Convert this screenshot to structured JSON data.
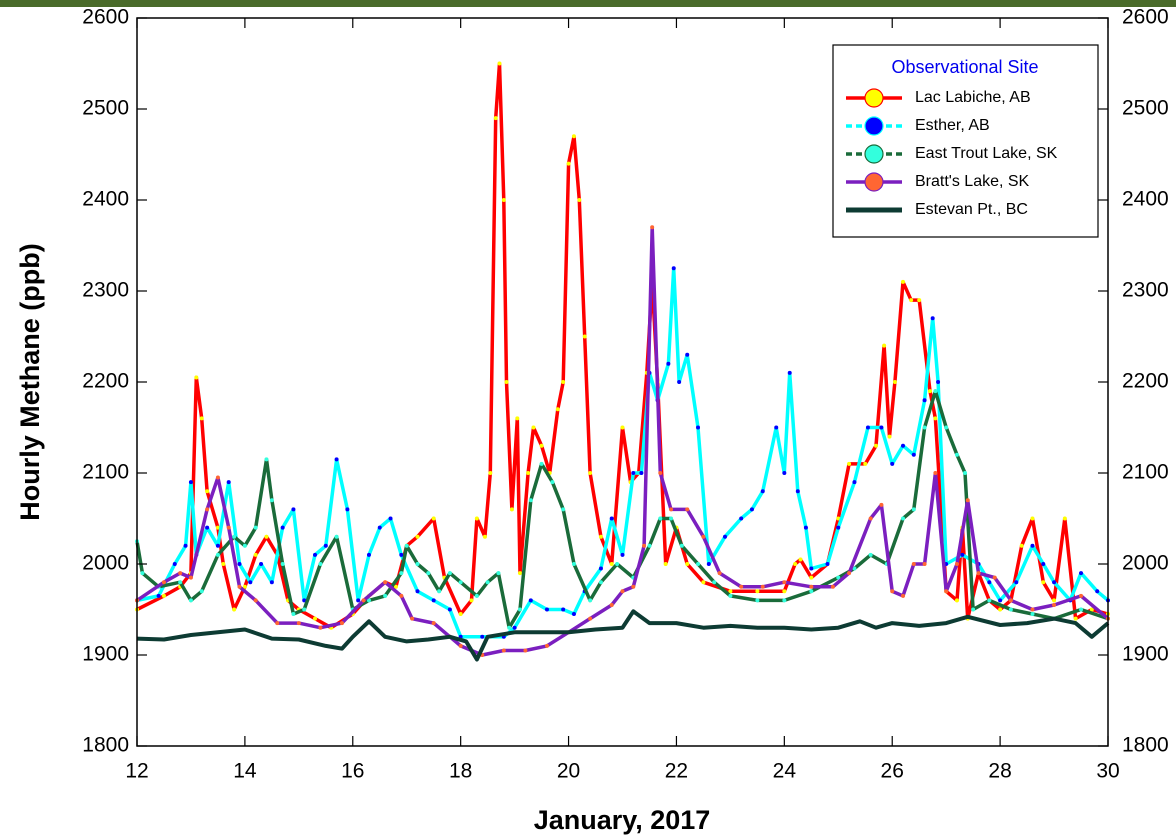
{
  "chart_data": {
    "type": "line",
    "xlabel": "January, 2017",
    "ylabel": "Hourly Methane (ppb)",
    "legend_title": "Observational Site",
    "legend": "upper right",
    "xlim": [
      12,
      30
    ],
    "xticks": [
      12,
      14,
      16,
      18,
      20,
      22,
      24,
      26,
      28,
      30
    ],
    "ylim": [
      1800,
      2600
    ],
    "yticks": [
      1800,
      1900,
      2000,
      2100,
      2200,
      2300,
      2400,
      2500,
      2600
    ],
    "y2lim": [
      1800,
      2600
    ],
    "y2ticks": [
      1800,
      1900,
      2000,
      2100,
      2200,
      2300,
      2400,
      2500,
      2600
    ],
    "series": [
      {
        "name": "Lac Labiche, AB",
        "color": "#ff0000",
        "marker_color": "#ffff00",
        "x": [
          12,
          12.5,
          12.8,
          13,
          13.1,
          13.2,
          13.3,
          13.5,
          13.6,
          13.8,
          14,
          14.2,
          14.4,
          14.6,
          14.8,
          15,
          15.3,
          15.6,
          16,
          16.3,
          16.6,
          16.8,
          17,
          17.2,
          17.5,
          17.7,
          18,
          18.2,
          18.3,
          18.45,
          18.55,
          18.65,
          18.72,
          18.8,
          18.85,
          18.95,
          19.05,
          19.1,
          19.25,
          19.35,
          19.5,
          19.65,
          19.8,
          19.9,
          20,
          20.1,
          20.2,
          20.3,
          20.4,
          20.6,
          20.8,
          21,
          21.15,
          21.3,
          21.45,
          21.55,
          21.65,
          21.8,
          22,
          22.2,
          22.5,
          23,
          23.5,
          24,
          24.2,
          24.3,
          24.5,
          24.8,
          25,
          25.2,
          25.5,
          25.7,
          25.85,
          25.95,
          26.05,
          26.2,
          26.35,
          26.5,
          26.7,
          26.8,
          27,
          27.2,
          27.3,
          27.4,
          27.6,
          27.8,
          28,
          28.2,
          28.4,
          28.6,
          28.8,
          29,
          29.2,
          29.4,
          29.7,
          30
        ],
        "values": [
          1950,
          1965,
          1975,
          1990,
          2205,
          2160,
          2080,
          2040,
          2000,
          1950,
          1975,
          2010,
          2030,
          2010,
          1960,
          1950,
          1940,
          1930,
          1945,
          1965,
          1980,
          1975,
          2020,
          2030,
          2050,
          1985,
          1945,
          1960,
          2050,
          2030,
          2100,
          2490,
          2550,
          2400,
          2200,
          2060,
          2160,
          1990,
          2100,
          2150,
          2130,
          2100,
          2170,
          2200,
          2440,
          2470,
          2400,
          2250,
          2100,
          2030,
          2000,
          2150,
          2090,
          2100,
          2210,
          2310,
          2200,
          2000,
          2040,
          2000,
          1980,
          1970,
          1970,
          1970,
          2000,
          2005,
          1985,
          2000,
          2050,
          2110,
          2110,
          2130,
          2240,
          2140,
          2200,
          2310,
          2290,
          2290,
          2190,
          2160,
          1970,
          1960,
          2040,
          1940,
          1990,
          1960,
          1950,
          1960,
          2020,
          2050,
          1980,
          1960,
          2050,
          1940,
          1950,
          1945
        ]
      },
      {
        "name": "Esther, AB",
        "color": "#00ffff",
        "marker_color": "#0000ff",
        "x": [
          12,
          12.4,
          12.7,
          12.9,
          13,
          13.1,
          13.3,
          13.5,
          13.7,
          13.9,
          14.1,
          14.3,
          14.5,
          14.7,
          14.9,
          15.1,
          15.3,
          15.5,
          15.7,
          15.9,
          16.1,
          16.3,
          16.5,
          16.7,
          16.9,
          17.2,
          17.5,
          17.8,
          18,
          18.4,
          18.8,
          19,
          19.3,
          19.6,
          19.9,
          20.1,
          20.3,
          20.6,
          20.8,
          21,
          21.2,
          21.35,
          21.5,
          21.65,
          21.85,
          21.95,
          22.05,
          22.2,
          22.4,
          22.6,
          22.9,
          23.2,
          23.4,
          23.6,
          23.85,
          24,
          24.1,
          24.25,
          24.4,
          24.5,
          24.8,
          25,
          25.3,
          25.55,
          25.8,
          26,
          26.2,
          26.4,
          26.6,
          26.75,
          26.85,
          27,
          27.3,
          27.6,
          27.8,
          28,
          28.3,
          28.6,
          28.8,
          29,
          29.3,
          29.5,
          29.8,
          30
        ],
        "values": [
          1960,
          1965,
          2000,
          2020,
          2090,
          2010,
          2040,
          2020,
          2090,
          2000,
          1980,
          2000,
          1980,
          2040,
          2060,
          1960,
          2010,
          2020,
          2115,
          2060,
          1960,
          2010,
          2040,
          2050,
          2010,
          1970,
          1960,
          1950,
          1920,
          1920,
          1920,
          1930,
          1960,
          1950,
          1950,
          1945,
          1970,
          1995,
          2050,
          2010,
          2100,
          2100,
          2210,
          2180,
          2220,
          2325,
          2200,
          2230,
          2150,
          2000,
          2030,
          2050,
          2060,
          2080,
          2150,
          2100,
          2210,
          2080,
          2040,
          1995,
          2000,
          2040,
          2090,
          2150,
          2150,
          2110,
          2130,
          2120,
          2180,
          2270,
          2200,
          2000,
          2010,
          2000,
          1980,
          1960,
          1980,
          2020,
          2000,
          1980,
          1960,
          1990,
          1970,
          1960
        ]
      },
      {
        "name": "East Trout Lake, SK",
        "color": "#1a6b3a",
        "marker_color": "#33ffdd",
        "x": [
          12,
          12.1,
          12.4,
          12.8,
          13,
          13.2,
          13.5,
          13.8,
          14,
          14.2,
          14.4,
          14.5,
          14.7,
          14.9,
          15.1,
          15.4,
          15.7,
          16,
          16.3,
          16.6,
          16.9,
          17,
          17.2,
          17.4,
          17.6,
          17.8,
          18,
          18.3,
          18.5,
          18.7,
          18.9,
          19.1,
          19.3,
          19.5,
          19.7,
          19.9,
          20.1,
          20.4,
          20.6,
          20.9,
          21.2,
          21.5,
          21.7,
          21.9,
          22.1,
          22.4,
          22.7,
          23,
          23.5,
          24,
          24.5,
          25,
          25.3,
          25.6,
          25.9,
          26.2,
          26.4,
          26.6,
          26.8,
          27,
          27.2,
          27.35,
          27.5,
          27.8,
          28.2,
          28.6,
          29,
          29.5,
          30
        ],
        "values": [
          2025,
          1990,
          1975,
          1980,
          1960,
          1970,
          2010,
          2030,
          2020,
          2040,
          2115,
          2070,
          2000,
          1945,
          1950,
          2000,
          2030,
          1950,
          1960,
          1965,
          1990,
          2020,
          2000,
          1990,
          1970,
          1990,
          1980,
          1965,
          1980,
          1990,
          1930,
          1950,
          2070,
          2110,
          2090,
          2060,
          2000,
          1960,
          1980,
          2000,
          1985,
          2020,
          2050,
          2050,
          2020,
          2000,
          1980,
          1965,
          1960,
          1960,
          1970,
          1985,
          1995,
          2010,
          2000,
          2050,
          2060,
          2150,
          2190,
          2150,
          2120,
          2100,
          1950,
          1960,
          1950,
          1945,
          1940,
          1950,
          1940
        ]
      },
      {
        "name": "Bratt's Lake, SK",
        "color": "#7b1fbf",
        "marker_color": "#ff6633",
        "x": [
          12,
          12.5,
          12.8,
          13,
          13.3,
          13.5,
          13.7,
          13.9,
          14.2,
          14.6,
          15,
          15.4,
          15.8,
          16.2,
          16.6,
          16.9,
          17.1,
          17.5,
          17.8,
          18,
          18.4,
          18.8,
          19.2,
          19.6,
          20,
          20.4,
          20.8,
          21,
          21.2,
          21.4,
          21.55,
          21.7,
          21.9,
          22.2,
          22.5,
          22.8,
          23.2,
          23.6,
          24,
          24.5,
          24.9,
          25.2,
          25.6,
          25.8,
          26,
          26.2,
          26.4,
          26.6,
          26.8,
          27,
          27.2,
          27.4,
          27.6,
          27.9,
          28.2,
          28.6,
          29,
          29.5,
          30
        ],
        "values": [
          1960,
          1980,
          1990,
          1985,
          2060,
          2095,
          2040,
          1975,
          1960,
          1935,
          1935,
          1930,
          1935,
          1960,
          1980,
          1965,
          1940,
          1935,
          1920,
          1910,
          1900,
          1905,
          1905,
          1910,
          1925,
          1940,
          1955,
          1970,
          1975,
          2020,
          2370,
          2100,
          2060,
          2060,
          2030,
          1990,
          1975,
          1975,
          1980,
          1975,
          1975,
          1990,
          2050,
          2065,
          1970,
          1965,
          2000,
          2000,
          2100,
          1970,
          2000,
          2070,
          1990,
          1985,
          1960,
          1950,
          1955,
          1965,
          1940
        ]
      },
      {
        "name": "Estevan Pt., BC",
        "color": "#0d3b33",
        "x": [
          12,
          12.5,
          13,
          13.5,
          14,
          14.5,
          15,
          15.5,
          15.8,
          16,
          16.3,
          16.6,
          17,
          17.4,
          17.8,
          18.1,
          18.3,
          18.5,
          19,
          19.5,
          20,
          20.5,
          21,
          21.2,
          21.5,
          22,
          22.5,
          23,
          23.5,
          24,
          24.5,
          25,
          25.4,
          25.7,
          26,
          26.5,
          27,
          27.4,
          28,
          28.5,
          29,
          29.4,
          29.7,
          30
        ],
        "values": [
          1918,
          1917,
          1922,
          1925,
          1928,
          1918,
          1917,
          1910,
          1907,
          1920,
          1937,
          1920,
          1915,
          1917,
          1920,
          1915,
          1895,
          1920,
          1925,
          1925,
          1925,
          1928,
          1930,
          1948,
          1935,
          1935,
          1930,
          1932,
          1930,
          1930,
          1928,
          1930,
          1937,
          1930,
          1935,
          1932,
          1935,
          1942,
          1933,
          1935,
          1940,
          1935,
          1920,
          1935
        ]
      }
    ]
  }
}
